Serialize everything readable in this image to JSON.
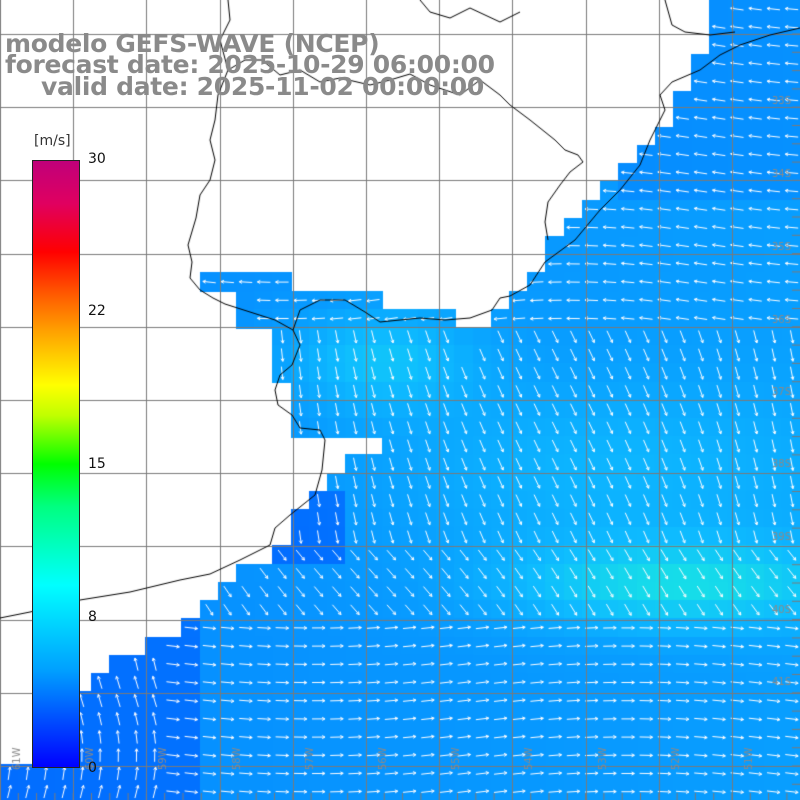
{
  "header": {
    "model": "modelo GEFS-WAVE (NCEP)",
    "forecast": "forecast date: 2025-10-29 06:00:00",
    "valid": "valid date: 2025-11-02 00:00:00"
  },
  "colorbar": {
    "unit": "[m/s]",
    "ticks": [
      "30",
      "22",
      "15",
      "8",
      "0"
    ],
    "colors": [
      "#0000ff",
      "#00a0ff",
      "#00ffff",
      "#00ff80",
      "#00ff00",
      "#c0ff00",
      "#ffff00",
      "#ffa000",
      "#ff5a00",
      "#ff0000",
      "#e00060",
      "#c0007a"
    ]
  },
  "graticule": {
    "lat_labels": [
      "33S",
      "34S",
      "35S",
      "36S",
      "37S",
      "38S",
      "39S",
      "40S",
      "41S"
    ],
    "lon_labels": [
      "61W",
      "60W",
      "59W",
      "58W",
      "57W",
      "56W",
      "55W",
      "54W",
      "53W",
      "52W",
      "51W"
    ]
  },
  "style": {
    "land": "#ffffff",
    "grid": "#7a7a7a",
    "coast": "#000000",
    "arrow": "#ffffff",
    "header_text": "#8a8a8a"
  }
}
